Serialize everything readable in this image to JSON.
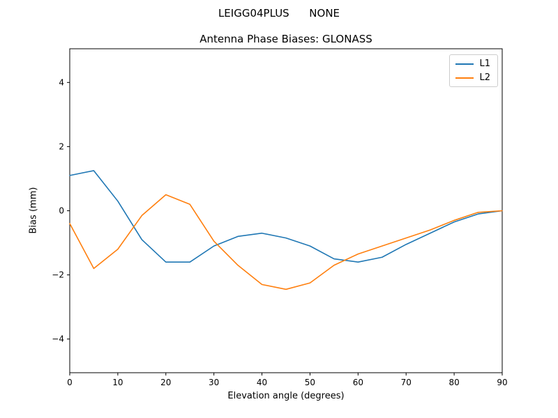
{
  "chart_data": {
    "type": "line",
    "suptitle": "LEIGG04PLUS      NONE",
    "title": "Antenna Phase Biases: GLONASS",
    "xlabel": "Elevation angle (degrees)",
    "ylabel": "Bias (mm)",
    "xlim": [
      0,
      90
    ],
    "ylim": [
      -5.05,
      5.05
    ],
    "xticks": [
      0,
      10,
      20,
      30,
      40,
      50,
      60,
      70,
      80,
      90
    ],
    "yticks": [
      -4,
      -2,
      0,
      2,
      4
    ],
    "grid": false,
    "legend_position": "upper right",
    "x": [
      0,
      5,
      10,
      15,
      20,
      25,
      30,
      35,
      40,
      45,
      50,
      55,
      60,
      65,
      70,
      75,
      80,
      85,
      90
    ],
    "series": [
      {
        "name": "L1",
        "color": "#1f77b4",
        "values": [
          1.1,
          1.25,
          0.3,
          -0.9,
          -1.6,
          -1.6,
          -1.1,
          -0.8,
          -0.7,
          -0.85,
          -1.1,
          -1.5,
          -1.6,
          -1.45,
          -1.05,
          -0.7,
          -0.35,
          -0.1,
          0.0
        ]
      },
      {
        "name": "L2",
        "color": "#ff7f0e",
        "values": [
          -0.4,
          -1.8,
          -1.2,
          -0.15,
          0.5,
          0.2,
          -0.95,
          -1.7,
          -2.3,
          -2.45,
          -2.25,
          -1.7,
          -1.35,
          -1.1,
          -0.85,
          -0.6,
          -0.3,
          -0.05,
          0.0
        ]
      }
    ]
  }
}
